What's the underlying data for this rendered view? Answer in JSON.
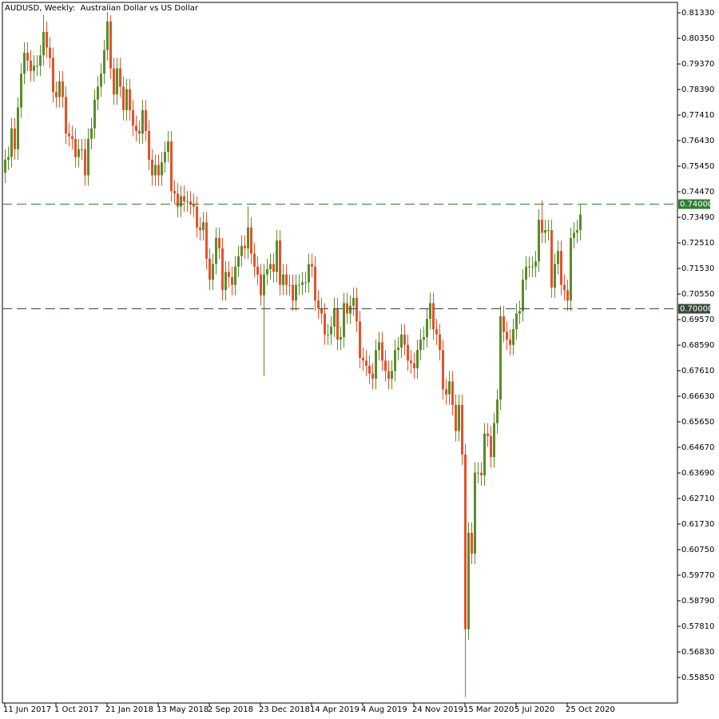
{
  "chart_data": {
    "type": "candlestick",
    "title": "AUDUSD, Weekly:  Australian Dollar vs US Dollar",
    "up_color": "#5a8c2a",
    "down_color": "#e2532a",
    "categories": [
      "11 Jun 2017",
      null,
      null,
      null,
      null,
      null,
      null,
      null,
      null,
      null,
      null,
      null,
      null,
      null,
      null,
      null,
      "1 Oct 2017",
      null,
      null,
      null,
      null,
      null,
      null,
      null,
      null,
      null,
      null,
      null,
      null,
      null,
      null,
      null,
      "21 Jan 2018",
      null,
      null,
      null,
      null,
      null,
      null,
      null,
      null,
      null,
      null,
      null,
      null,
      null,
      null,
      null,
      "13 May 2018",
      null,
      null,
      null,
      null,
      null,
      null,
      null,
      null,
      null,
      null,
      null,
      null,
      null,
      null,
      null,
      "2 Sep 2018",
      null,
      null,
      null,
      null,
      null,
      null,
      null,
      null,
      null,
      null,
      null,
      null,
      null,
      null,
      null,
      "23 Dec 2018",
      null,
      null,
      null,
      null,
      null,
      null,
      null,
      null,
      null,
      null,
      null,
      null,
      null,
      null,
      null,
      "14 Apr 2019",
      null,
      null,
      null,
      null,
      null,
      null,
      null,
      null,
      null,
      null,
      null,
      null,
      null,
      null,
      null,
      "4 Aug 2019",
      null,
      null,
      null,
      null,
      null,
      null,
      null,
      null,
      null,
      null,
      null,
      null,
      null,
      null,
      null,
      "24 Nov 2019",
      null,
      null,
      null,
      null,
      null,
      null,
      null,
      null,
      null,
      null,
      null,
      null,
      null,
      null,
      null,
      "15 Mar 2020",
      null,
      null,
      null,
      null,
      null,
      null,
      null,
      null,
      null,
      null,
      null,
      null,
      null,
      null,
      null,
      "5 Jul 2020",
      null,
      null,
      null,
      null,
      null,
      null,
      null,
      null,
      null,
      null,
      null,
      null,
      null,
      null,
      null,
      "25 Oct 2020",
      null,
      null,
      null,
      null
    ],
    "open": [
      0.752,
      0.757,
      0.758,
      0.769,
      0.761,
      0.777,
      0.79,
      0.798,
      0.795,
      0.791,
      0.793,
      0.793,
      0.797,
      0.806,
      0.8,
      0.796,
      0.783,
      0.781,
      0.787,
      0.781,
      0.767,
      0.766,
      0.765,
      0.758,
      0.761,
      0.761,
      0.751,
      0.765,
      0.769,
      0.78,
      0.785,
      0.79,
      0.799,
      0.81,
      0.792,
      0.782,
      0.792,
      0.785,
      0.776,
      0.784,
      0.776,
      0.77,
      0.768,
      0.767,
      0.776,
      0.768,
      0.757,
      0.751,
      0.755,
      0.751,
      0.756,
      0.76,
      0.764,
      0.745,
      0.744,
      0.739,
      0.743,
      0.741,
      0.741,
      0.74,
      0.739,
      0.731,
      0.73,
      0.733,
      0.719,
      0.711,
      0.717,
      0.727,
      0.723,
      0.707,
      0.714,
      0.712,
      0.709,
      0.716,
      0.72,
      0.724,
      0.723,
      0.731,
      0.721,
      0.716,
      0.713,
      0.705,
      0.713,
      0.715,
      0.717,
      0.714,
      0.726,
      0.709,
      0.713,
      0.709,
      0.709,
      0.703,
      0.709,
      0.709,
      0.71,
      0.71,
      0.717,
      0.716,
      0.703,
      0.7,
      0.698,
      0.69,
      0.69,
      0.693,
      0.7,
      0.688,
      0.689,
      0.702,
      0.698,
      0.701,
      0.704,
      0.695,
      0.681,
      0.68,
      0.678,
      0.675,
      0.673,
      0.684,
      0.687,
      0.68,
      0.676,
      0.673,
      0.676,
      0.684,
      0.685,
      0.69,
      0.686,
      0.68,
      0.679,
      0.677,
      0.684,
      0.688,
      0.689,
      0.696,
      0.702,
      0.692,
      0.69,
      0.684,
      0.669,
      0.667,
      0.672,
      0.663,
      0.653,
      0.663,
      0.644,
      0.577,
      0.614,
      0.606,
      0.637,
      0.637,
      0.636,
      0.652,
      0.651,
      0.643,
      0.656,
      0.665,
      0.697,
      0.691,
      0.688,
      0.686,
      0.692,
      0.698,
      0.699,
      0.711,
      0.716,
      0.716,
      0.716,
      0.718,
      0.734,
      0.729,
      0.73,
      0.73,
      0.708,
      0.717,
      0.722,
      0.709,
      0.707,
      0.703,
      0.727,
      0.729,
      0.73
    ],
    "high": [
      0.761,
      0.762,
      0.773,
      0.773,
      0.781,
      0.794,
      0.802,
      0.802,
      0.799,
      0.797,
      0.797,
      0.801,
      0.8125,
      0.81,
      0.804,
      0.8,
      0.787,
      0.791,
      0.791,
      0.785,
      0.771,
      0.77,
      0.769,
      0.765,
      0.765,
      0.765,
      0.769,
      0.773,
      0.784,
      0.789,
      0.794,
      0.803,
      0.8136,
      0.8125,
      0.796,
      0.796,
      0.796,
      0.789,
      0.788,
      0.788,
      0.78,
      0.774,
      0.772,
      0.78,
      0.78,
      0.772,
      0.761,
      0.759,
      0.759,
      0.76,
      0.764,
      0.768,
      0.768,
      0.749,
      0.748,
      0.747,
      0.747,
      0.745,
      0.745,
      0.744,
      0.743,
      0.735,
      0.737,
      0.737,
      0.723,
      0.721,
      0.731,
      0.731,
      0.727,
      0.718,
      0.718,
      0.716,
      0.72,
      0.724,
      0.728,
      0.728,
      0.739,
      0.735,
      0.725,
      0.72,
      0.717,
      0.717,
      0.719,
      0.721,
      0.721,
      0.73,
      0.73,
      0.717,
      0.717,
      0.713,
      0.713,
      0.713,
      0.713,
      0.714,
      0.714,
      0.721,
      0.721,
      0.72,
      0.707,
      0.704,
      0.702,
      0.694,
      0.697,
      0.704,
      0.704,
      0.693,
      0.706,
      0.706,
      0.705,
      0.708,
      0.708,
      0.699,
      0.685,
      0.684,
      0.682,
      0.679,
      0.688,
      0.691,
      0.691,
      0.684,
      0.68,
      0.68,
      0.688,
      0.689,
      0.694,
      0.694,
      0.69,
      0.684,
      0.683,
      0.688,
      0.692,
      0.693,
      0.7,
      0.706,
      0.706,
      0.696,
      0.694,
      0.688,
      0.673,
      0.676,
      0.676,
      0.667,
      0.667,
      0.667,
      0.648,
      0.618,
      0.618,
      0.641,
      0.641,
      0.641,
      0.656,
      0.656,
      0.655,
      0.66,
      0.669,
      0.701,
      0.701,
      0.695,
      0.692,
      0.696,
      0.702,
      0.703,
      0.715,
      0.72,
      0.72,
      0.72,
      0.722,
      0.738,
      0.7414,
      0.734,
      0.734,
      0.734,
      0.721,
      0.726,
      0.726,
      0.713,
      0.711,
      0.731,
      0.733,
      0.734,
      0.74
    ],
    "low": [
      0.748,
      0.753,
      0.754,
      0.757,
      0.757,
      0.773,
      0.786,
      0.791,
      0.787,
      0.787,
      0.789,
      0.789,
      0.793,
      0.796,
      0.792,
      0.779,
      0.777,
      0.777,
      0.777,
      0.763,
      0.762,
      0.761,
      0.754,
      0.754,
      0.757,
      0.747,
      0.747,
      0.761,
      0.765,
      0.776,
      0.781,
      0.786,
      0.795,
      0.788,
      0.778,
      0.778,
      0.781,
      0.772,
      0.772,
      0.772,
      0.766,
      0.764,
      0.763,
      0.763,
      0.764,
      0.753,
      0.747,
      0.747,
      0.747,
      0.747,
      0.752,
      0.756,
      0.741,
      0.74,
      0.735,
      0.735,
      0.737,
      0.737,
      0.736,
      0.735,
      0.727,
      0.726,
      0.726,
      0.715,
      0.707,
      0.707,
      0.713,
      0.719,
      0.703,
      0.703,
      0.708,
      0.705,
      0.705,
      0.712,
      0.716,
      0.719,
      0.719,
      0.717,
      0.712,
      0.709,
      0.701,
      0.674,
      0.709,
      0.711,
      0.71,
      0.71,
      0.705,
      0.705,
      0.705,
      0.705,
      0.699,
      0.699,
      0.705,
      0.705,
      0.706,
      0.706,
      0.712,
      0.699,
      0.696,
      0.694,
      0.686,
      0.686,
      0.686,
      0.689,
      0.684,
      0.684,
      0.685,
      0.694,
      0.694,
      0.697,
      0.691,
      0.677,
      0.676,
      0.674,
      0.671,
      0.669,
      0.669,
      0.68,
      0.676,
      0.672,
      0.669,
      0.669,
      0.672,
      0.68,
      0.681,
      0.682,
      0.676,
      0.675,
      0.673,
      0.673,
      0.68,
      0.684,
      0.685,
      0.692,
      0.688,
      0.686,
      0.68,
      0.665,
      0.663,
      0.663,
      0.659,
      0.649,
      0.649,
      0.64,
      0.551,
      0.573,
      0.602,
      0.602,
      0.633,
      0.632,
      0.632,
      0.647,
      0.639,
      0.639,
      0.652,
      0.661,
      0.687,
      0.684,
      0.682,
      0.682,
      0.688,
      0.694,
      0.695,
      0.707,
      0.712,
      0.712,
      0.712,
      0.714,
      0.725,
      0.725,
      0.726,
      0.704,
      0.704,
      0.713,
      0.705,
      0.703,
      0.699,
      0.699,
      0.723,
      0.725,
      0.726
    ],
    "close": [
      0.757,
      0.758,
      0.769,
      0.761,
      0.777,
      0.79,
      0.798,
      0.795,
      0.791,
      0.793,
      0.793,
      0.797,
      0.806,
      0.8,
      0.796,
      0.783,
      0.781,
      0.787,
      0.781,
      0.767,
      0.766,
      0.765,
      0.758,
      0.761,
      0.761,
      0.751,
      0.765,
      0.769,
      0.78,
      0.785,
      0.79,
      0.799,
      0.81,
      0.792,
      0.782,
      0.792,
      0.785,
      0.776,
      0.784,
      0.776,
      0.77,
      0.768,
      0.767,
      0.776,
      0.768,
      0.757,
      0.751,
      0.755,
      0.751,
      0.756,
      0.76,
      0.764,
      0.745,
      0.744,
      0.739,
      0.743,
      0.741,
      0.741,
      0.74,
      0.739,
      0.731,
      0.73,
      0.733,
      0.719,
      0.711,
      0.717,
      0.727,
      0.723,
      0.707,
      0.714,
      0.712,
      0.709,
      0.716,
      0.72,
      0.724,
      0.723,
      0.731,
      0.721,
      0.716,
      0.713,
      0.705,
      0.713,
      0.715,
      0.717,
      0.714,
      0.726,
      0.709,
      0.713,
      0.709,
      0.709,
      0.703,
      0.709,
      0.709,
      0.71,
      0.71,
      0.717,
      0.716,
      0.703,
      0.7,
      0.698,
      0.69,
      0.69,
      0.693,
      0.7,
      0.688,
      0.689,
      0.702,
      0.698,
      0.701,
      0.704,
      0.695,
      0.681,
      0.68,
      0.678,
      0.675,
      0.673,
      0.684,
      0.687,
      0.68,
      0.676,
      0.673,
      0.676,
      0.684,
      0.685,
      0.69,
      0.686,
      0.68,
      0.679,
      0.677,
      0.684,
      0.688,
      0.689,
      0.696,
      0.702,
      0.692,
      0.69,
      0.684,
      0.669,
      0.667,
      0.672,
      0.663,
      0.653,
      0.663,
      0.644,
      0.577,
      0.614,
      0.606,
      0.637,
      0.637,
      0.636,
      0.652,
      0.651,
      0.643,
      0.656,
      0.665,
      0.697,
      0.691,
      0.688,
      0.686,
      0.692,
      0.698,
      0.699,
      0.711,
      0.716,
      0.716,
      0.716,
      0.718,
      0.734,
      0.729,
      0.73,
      0.73,
      0.708,
      0.717,
      0.722,
      0.709,
      0.707,
      0.703,
      0.727,
      0.729,
      0.73,
      0.736
    ],
    "ylim": [
      0.5487,
      0.8173
    ],
    "yticks": [
      {
        "value": 0.8133,
        "label": "0.81330"
      },
      {
        "value": 0.8035,
        "label": "0.80350"
      },
      {
        "value": 0.7937,
        "label": "0.79370"
      },
      {
        "value": 0.7839,
        "label": "0.78390"
      },
      {
        "value": 0.7741,
        "label": "0.77410"
      },
      {
        "value": 0.7643,
        "label": "0.76430"
      },
      {
        "value": 0.7545,
        "label": "0.75450"
      },
      {
        "value": 0.7447,
        "label": "0.74470"
      },
      {
        "value": 0.7349,
        "label": "0.73490"
      },
      {
        "value": 0.7251,
        "label": "0.72510"
      },
      {
        "value": 0.7153,
        "label": "0.71530"
      },
      {
        "value": 0.7055,
        "label": "0.70550"
      },
      {
        "value": 0.6957,
        "label": "0.69570"
      },
      {
        "value": 0.6859,
        "label": "0.68590"
      },
      {
        "value": 0.6761,
        "label": "0.67610"
      },
      {
        "value": 0.6663,
        "label": "0.66630"
      },
      {
        "value": 0.6565,
        "label": "0.65650"
      },
      {
        "value": 0.6467,
        "label": "0.64670"
      },
      {
        "value": 0.6369,
        "label": "0.63690"
      },
      {
        "value": 0.6271,
        "label": "0.62710"
      },
      {
        "value": 0.6173,
        "label": "0.61730"
      },
      {
        "value": 0.6075,
        "label": "0.60750"
      },
      {
        "value": 0.5977,
        "label": "0.59770"
      },
      {
        "value": 0.5879,
        "label": "0.58790"
      },
      {
        "value": 0.5781,
        "label": "0.57810"
      },
      {
        "value": 0.5683,
        "label": "0.56830"
      },
      {
        "value": 0.5585,
        "label": "0.55850"
      }
    ],
    "levels": [
      {
        "value": 0.74,
        "label": "0.74000",
        "color": "#2e7d32"
      },
      {
        "value": 0.7,
        "label": "0.70000",
        "color": "#3a4a3a"
      }
    ]
  }
}
